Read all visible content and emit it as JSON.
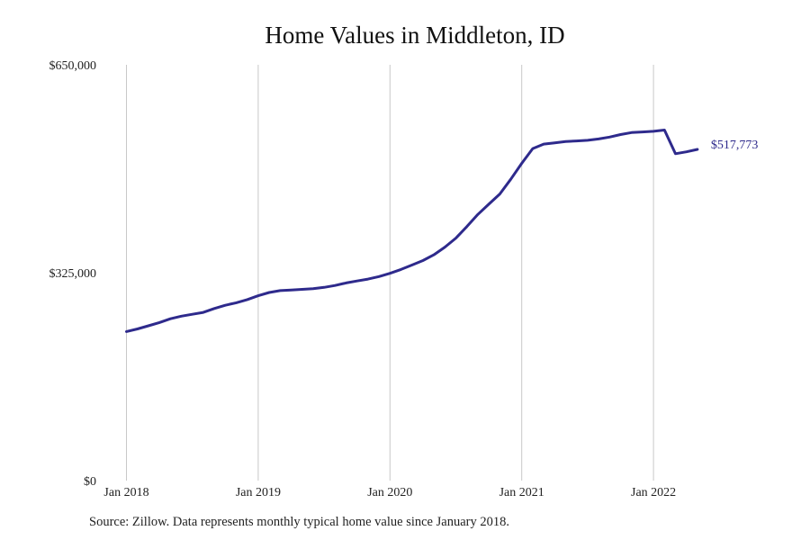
{
  "chart_data": {
    "type": "line",
    "title": "Home Values in Middleton, ID",
    "xlabel": "",
    "ylabel": "",
    "ylim": [
      0,
      650000
    ],
    "y_ticks": [
      0,
      325000,
      650000
    ],
    "y_tick_labels": [
      "$0",
      "$325,000",
      "$650,000"
    ],
    "x_ticks": [
      0,
      12,
      24,
      36,
      48
    ],
    "x_tick_labels": [
      "Jan 2018",
      "Jan 2019",
      "Jan 2020",
      "Jan 2021",
      "Jan 2022"
    ],
    "xlim_months": [
      0,
      52
    ],
    "grid": "vertical",
    "line_color": "#2e2a8c",
    "series": [
      {
        "name": "",
        "x_dates": [
          "2018-01",
          "2018-02",
          "2018-03",
          "2018-04",
          "2018-05",
          "2018-06",
          "2018-07",
          "2018-08",
          "2018-09",
          "2018-10",
          "2018-11",
          "2018-12",
          "2019-01",
          "2019-02",
          "2019-03",
          "2019-04",
          "2019-05",
          "2019-06",
          "2019-07",
          "2019-08",
          "2019-09",
          "2019-10",
          "2019-11",
          "2019-12",
          "2020-01",
          "2020-02",
          "2020-03",
          "2020-04",
          "2020-05",
          "2020-06",
          "2020-07",
          "2020-08",
          "2020-09",
          "2020-10",
          "2020-11",
          "2020-12",
          "2021-01",
          "2021-02",
          "2021-03",
          "2021-04",
          "2021-05",
          "2021-06",
          "2021-07",
          "2021-08",
          "2021-09",
          "2021-10",
          "2021-11",
          "2021-12",
          "2022-01",
          "2022-02",
          "2022-03",
          "2022-04",
          "2022-05"
        ],
        "values": [
          233000,
          237000,
          242000,
          247000,
          253000,
          257000,
          260000,
          263000,
          269000,
          274000,
          278000,
          283000,
          289000,
          294000,
          297000,
          298000,
          299000,
          300000,
          302000,
          305000,
          309000,
          312000,
          315000,
          319000,
          324000,
          330000,
          337000,
          344000,
          353000,
          365000,
          379000,
          397000,
          416000,
          432000,
          448000,
          471000,
          496000,
          519000,
          526000,
          528000,
          530000,
          531000,
          532000,
          534000,
          537000,
          541000,
          544000,
          545000,
          546000,
          548000,
          511000,
          514000,
          517773
        ]
      }
    ],
    "end_label": "$517,773"
  },
  "source": "Source: Zillow. Data represents monthly typical home value since January 2018."
}
